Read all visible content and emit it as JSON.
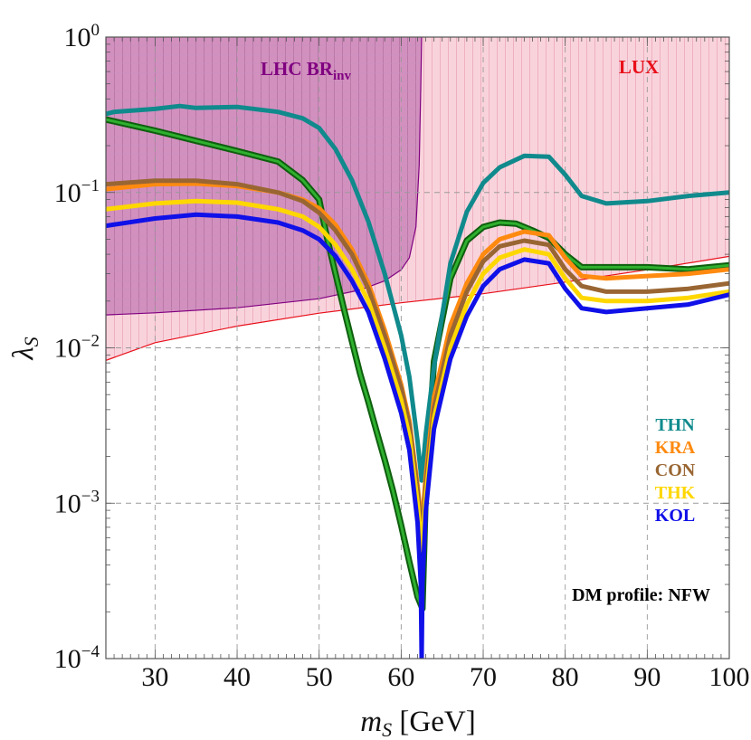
{
  "chart_data": {
    "type": "line",
    "title": "",
    "xlabel": "m",
    "xlabel_sub": "S",
    "xlabel_unit": "[GeV]",
    "ylabel": "λ",
    "ylabel_sub": "S",
    "xlim": [
      24,
      100
    ],
    "ylim": [
      0.0001,
      1
    ],
    "yscale": "log",
    "grid": true,
    "x_ticks": [
      {
        "value": 30,
        "label": "30"
      },
      {
        "value": 40,
        "label": "40"
      },
      {
        "value": 50,
        "label": "50"
      },
      {
        "value": 60,
        "label": "60"
      },
      {
        "value": 70,
        "label": "70"
      },
      {
        "value": 80,
        "label": "80"
      },
      {
        "value": 90,
        "label": "90"
      },
      {
        "value": 100,
        "label": "100"
      }
    ],
    "y_ticks": [
      {
        "value": 0.0001,
        "base": "10",
        "exp": "−4"
      },
      {
        "value": 0.001,
        "base": "10",
        "exp": "−3"
      },
      {
        "value": 0.01,
        "base": "10",
        "exp": "−2"
      },
      {
        "value": 0.1,
        "base": "10",
        "exp": "−1"
      },
      {
        "value": 1,
        "base": "10",
        "exp": "0"
      }
    ],
    "regions": [
      {
        "name": "LHC BR",
        "sub": "inv",
        "color": "#800080",
        "fill": "#c880b8",
        "boundary": {
          "x": [
            24,
            30,
            40,
            50,
            55,
            58,
            60,
            61,
            61.8,
            62.2,
            62.4,
            62.5
          ],
          "y": [
            0.0163,
            0.0168,
            0.0181,
            0.0207,
            0.0236,
            0.027,
            0.0318,
            0.038,
            0.06,
            0.15,
            0.5,
            1.0
          ]
        }
      },
      {
        "name": "LUX",
        "color": "#e8101a",
        "fill": "#f7c4d0",
        "boundary": {
          "x": [
            24,
            30,
            40,
            50,
            60,
            70,
            80,
            90,
            100
          ],
          "y": [
            0.0083,
            0.0108,
            0.0138,
            0.0167,
            0.0195,
            0.0223,
            0.0265,
            0.0318,
            0.0388
          ]
        }
      }
    ],
    "series": [
      {
        "name": "KRA_green",
        "label": "",
        "color": "#1e8a1e",
        "width": 4,
        "x": [
          24,
          30,
          35,
          40,
          45,
          48,
          50,
          51,
          52,
          53,
          54,
          55,
          56,
          57,
          58,
          59,
          60,
          61,
          62,
          62.6,
          63,
          64,
          66,
          68,
          70,
          72,
          74,
          76,
          78,
          80,
          82,
          85,
          90,
          95,
          100
        ],
        "y": [
          0.295,
          0.25,
          0.215,
          0.185,
          0.158,
          0.12,
          0.09,
          0.05,
          0.03,
          0.018,
          0.011,
          0.0068,
          0.0045,
          0.0029,
          0.0019,
          0.0012,
          0.00072,
          0.00042,
          0.00025,
          0.00021,
          0.0012,
          0.0082,
          0.028,
          0.049,
          0.06,
          0.064,
          0.063,
          0.057,
          0.051,
          0.04,
          0.033,
          0.033,
          0.033,
          0.032,
          0.034
        ]
      },
      {
        "name": "THN",
        "label": "THN",
        "color": "#108a8c",
        "width": 5,
        "x": [
          24,
          25,
          30,
          33,
          35,
          40,
          45,
          48,
          50,
          52,
          54,
          56,
          58,
          60,
          61,
          62,
          62.5,
          63,
          64,
          66,
          68,
          70,
          72,
          75,
          78,
          80,
          82,
          85,
          90,
          95,
          100
        ],
        "y": [
          0.32,
          0.33,
          0.345,
          0.36,
          0.35,
          0.355,
          0.33,
          0.3,
          0.26,
          0.19,
          0.12,
          0.065,
          0.03,
          0.012,
          0.0065,
          0.0025,
          0.0014,
          0.0028,
          0.0075,
          0.035,
          0.075,
          0.115,
          0.145,
          0.172,
          0.17,
          0.13,
          0.095,
          0.085,
          0.088,
          0.095,
          0.1
        ]
      },
      {
        "name": "KRA",
        "label": "KRA",
        "color": "#ff8a10",
        "width": 5,
        "x": [
          24,
          30,
          35,
          40,
          45,
          48,
          50,
          52,
          54,
          56,
          58,
          60,
          61,
          62,
          62.5,
          63,
          64,
          66,
          68,
          70,
          72,
          75,
          78,
          80,
          82,
          85,
          90,
          95,
          100
        ],
        "y": [
          0.105,
          0.113,
          0.114,
          0.11,
          0.1,
          0.09,
          0.079,
          0.062,
          0.043,
          0.026,
          0.013,
          0.0058,
          0.0034,
          0.0013,
          0.0007,
          0.0015,
          0.0048,
          0.014,
          0.026,
          0.04,
          0.05,
          0.056,
          0.053,
          0.038,
          0.029,
          0.028,
          0.029,
          0.03,
          0.032
        ]
      },
      {
        "name": "CON",
        "label": "CON",
        "color": "#996633",
        "width": 5,
        "x": [
          24,
          30,
          35,
          40,
          45,
          48,
          50,
          52,
          54,
          56,
          58,
          60,
          61,
          62,
          62.5,
          63,
          64,
          66,
          68,
          70,
          72,
          75,
          78,
          80,
          82,
          85,
          90,
          95,
          100
        ],
        "y": [
          0.113,
          0.119,
          0.119,
          0.113,
          0.1,
          0.088,
          0.074,
          0.057,
          0.04,
          0.024,
          0.012,
          0.0055,
          0.0032,
          0.0012,
          0.0006,
          0.0013,
          0.0041,
          0.012,
          0.023,
          0.036,
          0.045,
          0.049,
          0.046,
          0.032,
          0.025,
          0.023,
          0.023,
          0.024,
          0.026
        ]
      },
      {
        "name": "THK",
        "label": "THK",
        "color": "#ffd700",
        "width": 5,
        "x": [
          24,
          30,
          35,
          40,
          45,
          48,
          50,
          52,
          54,
          56,
          58,
          60,
          61,
          62,
          62.5,
          63,
          64,
          66,
          68,
          70,
          72,
          75,
          78,
          80,
          82,
          85,
          90,
          95,
          100
        ],
        "y": [
          0.078,
          0.085,
          0.088,
          0.086,
          0.078,
          0.07,
          0.06,
          0.046,
          0.032,
          0.02,
          0.01,
          0.0046,
          0.0027,
          0.001,
          0.0005,
          0.0011,
          0.0035,
          0.01,
          0.019,
          0.03,
          0.038,
          0.043,
          0.04,
          0.028,
          0.021,
          0.02,
          0.02,
          0.021,
          0.023
        ]
      },
      {
        "name": "KOL",
        "label": "KOL",
        "color": "#1010e8",
        "width": 5,
        "x": [
          24,
          30,
          35,
          40,
          45,
          48,
          50,
          52,
          54,
          56,
          58,
          60,
          61,
          62,
          62.4,
          62.5,
          62.6,
          63,
          64,
          66,
          68,
          70,
          72,
          75,
          78,
          80,
          82,
          85,
          90,
          95,
          100
        ],
        "y": [
          0.061,
          0.068,
          0.072,
          0.07,
          0.064,
          0.057,
          0.05,
          0.039,
          0.027,
          0.017,
          0.0085,
          0.0038,
          0.0022,
          0.00075,
          0.0003,
          0.0001,
          0.0003,
          0.0009,
          0.003,
          0.0085,
          0.016,
          0.025,
          0.032,
          0.037,
          0.035,
          0.024,
          0.018,
          0.017,
          0.018,
          0.019,
          0.022
        ]
      }
    ],
    "legend": {
      "placement": "right",
      "entries": [
        {
          "label": "THN",
          "color": "#108a8c"
        },
        {
          "label": "KRA",
          "color": "#ff8a10"
        },
        {
          "label": "CON",
          "color": "#996633"
        },
        {
          "label": "THK",
          "color": "#ffd700"
        },
        {
          "label": "KOL",
          "color": "#1010e8"
        }
      ]
    },
    "annotation": "DM profile: NFW"
  }
}
